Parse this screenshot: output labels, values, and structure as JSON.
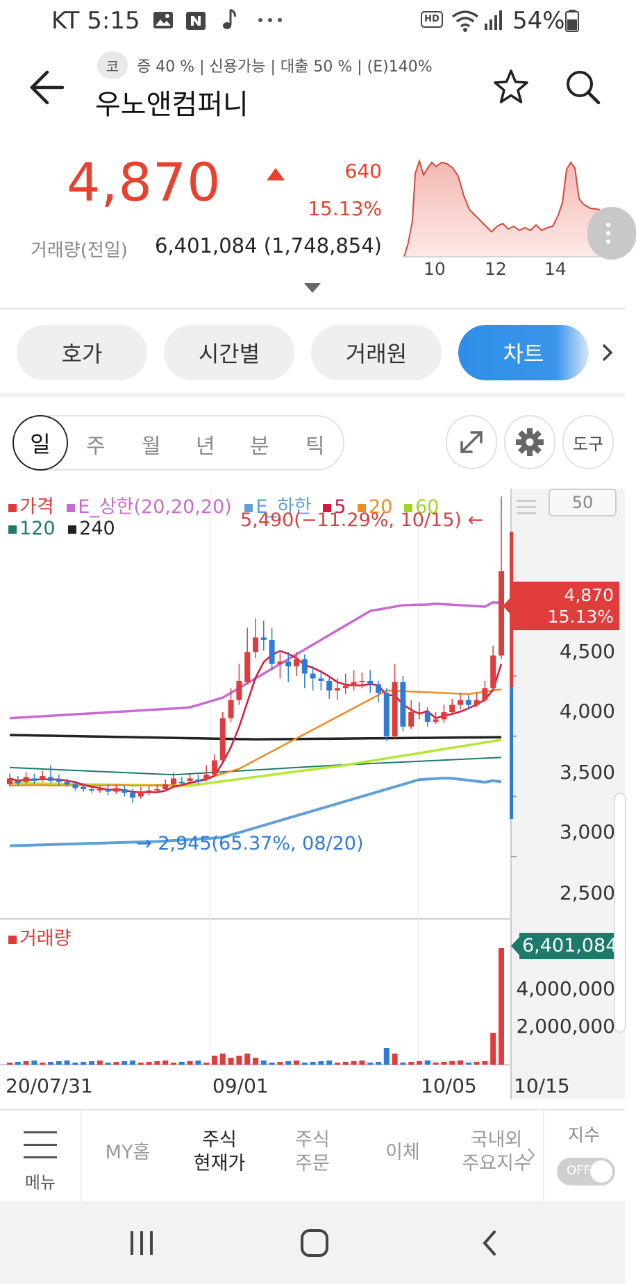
{
  "status_bar": {
    "carrier_time": "KT 5:15",
    "hd_label": "HD",
    "battery": "54%",
    "icons": [
      "gallery-icon",
      "naver-icon",
      "music-icon",
      "more-dots-icon",
      "wifi-icon",
      "signal-icon",
      "battery-icon"
    ]
  },
  "header": {
    "market_badge": "코",
    "tags": "증 40 % | 신용가능 | 대출 50 % | (E)140%",
    "stock_name": "우노앤컴퍼니"
  },
  "quote": {
    "price": "4,870",
    "change": "640",
    "change_pct": "15.13%",
    "volume_label": "거래량(전일)",
    "volume_value": "6,401,084 (1,748,854)",
    "spark_x_labels": [
      "10",
      "12",
      "14"
    ]
  },
  "tabs": [
    {
      "label": "호가",
      "active": false
    },
    {
      "label": "시간별",
      "active": false
    },
    {
      "label": "거래원",
      "active": false
    },
    {
      "label": "차트",
      "active": true
    }
  ],
  "periods": [
    "일",
    "주",
    "월",
    "년",
    "분",
    "틱"
  ],
  "selected_period": "일",
  "tool_button": "도구",
  "chart_legend": {
    "price": "가격",
    "upper": "E_상한(20,20,20)",
    "lower": "E_하한",
    "ma5": "5",
    "ma20": "20",
    "ma60": "60",
    "ma120": "120",
    "ma240": "240",
    "volume": "거래량"
  },
  "chart_annotations": {
    "high": "5,490(−11.29%, 10/15) ←",
    "low": "→ 2,945(65.37%, 08/20)",
    "sixty_box": "50"
  },
  "chart_data": {
    "type": "candlestick",
    "price_y_ticks": [
      "4,500",
      "4,000",
      "3,500",
      "3,000",
      "2,500"
    ],
    "volume_y_ticks": [
      "4,000,000",
      "2,000,000"
    ],
    "x_labels": [
      "20/07/31",
      "09/01",
      "10/05",
      "10/15"
    ],
    "current_price": "4,870",
    "current_pct": "15.13%",
    "current_volume": "6,401,084",
    "high": 5490,
    "low": 2945,
    "last_close": 4870,
    "last_volume": 6401084,
    "colors": {
      "up": "#e03c3c",
      "down": "#2f7bd8"
    }
  },
  "bottom_nav": {
    "menu": "메뉴",
    "my_home": "MY홈",
    "stock_current_1": "주식",
    "stock_current_2": "현재가",
    "stock_order_1": "주식",
    "stock_order_2": "주문",
    "transfer": "이체",
    "index_1": "국내외",
    "index_2": "주요지수",
    "index_toggle_label": "지수",
    "toggle_state": "OFF"
  }
}
